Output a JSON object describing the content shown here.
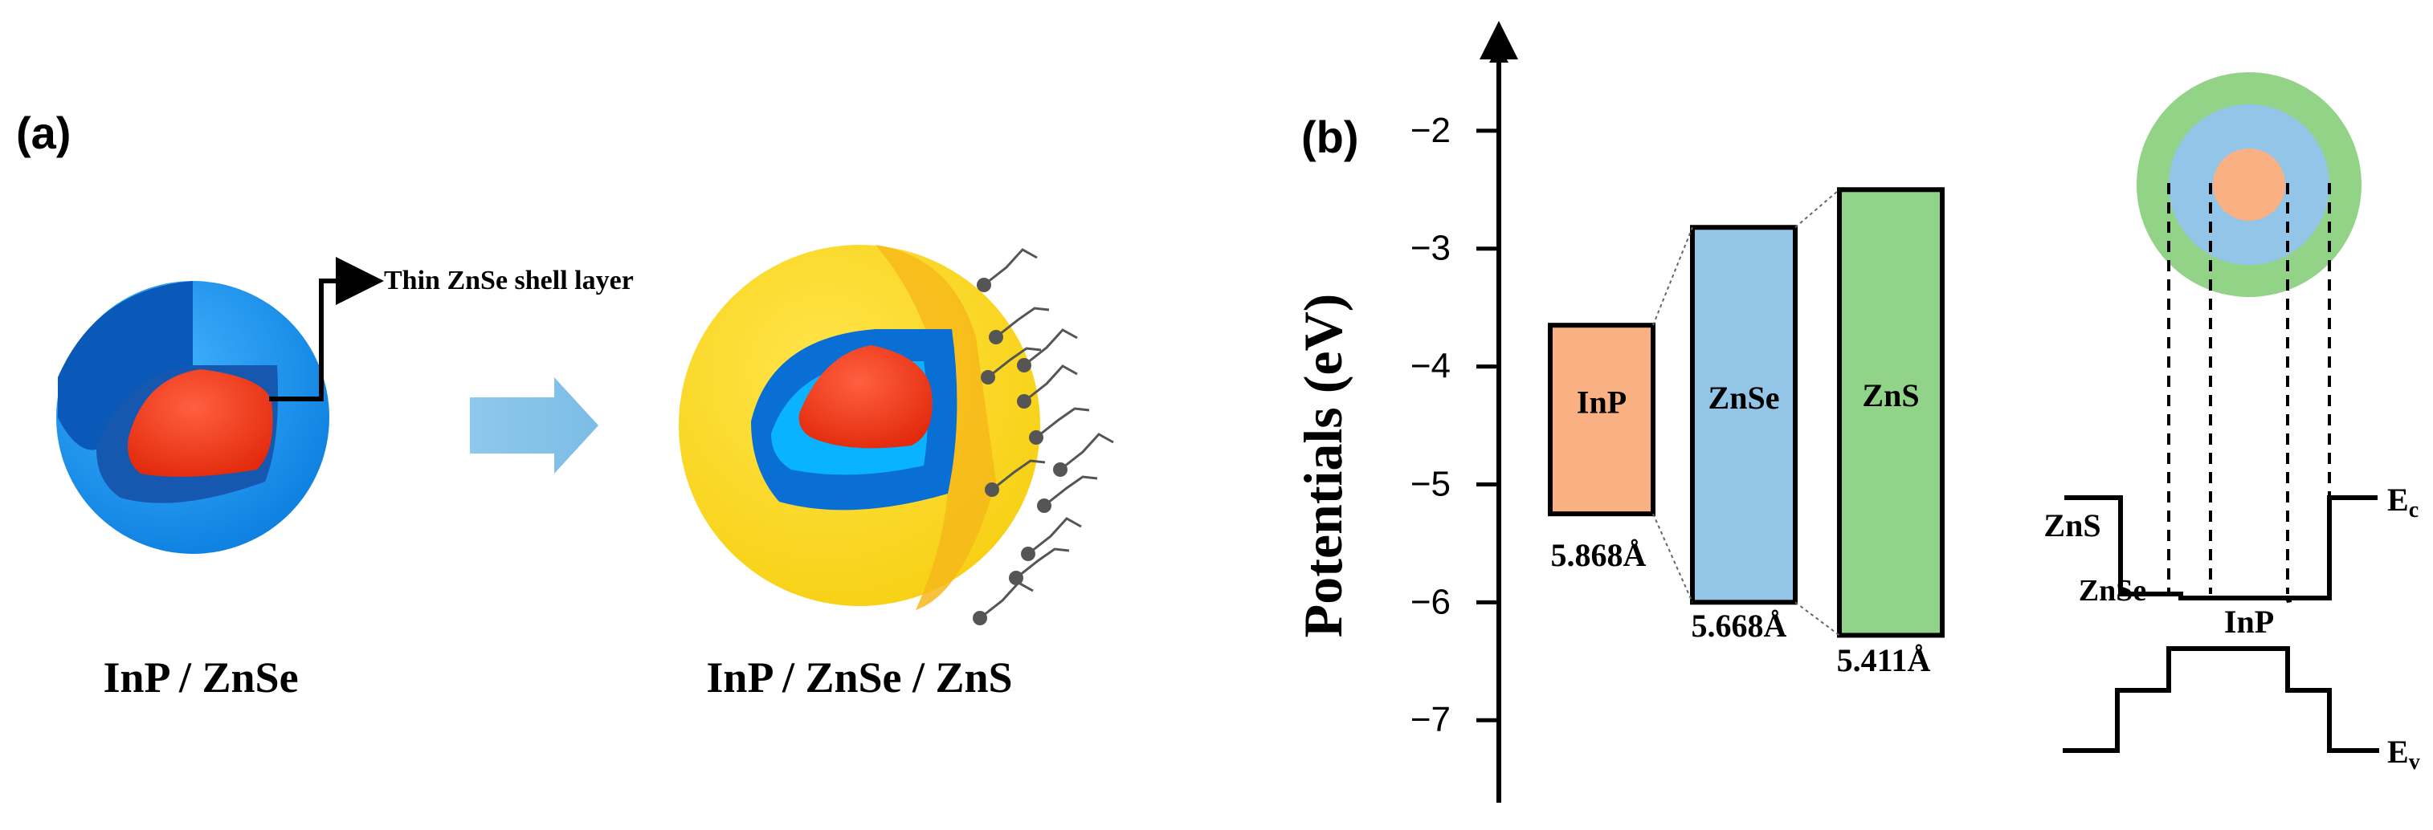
{
  "panel_a": {
    "label": "(a)",
    "callout": "Thin ZnSe shell layer",
    "caption_left": "InP / ZnSe",
    "caption_right": "InP / ZnSe / ZnS"
  },
  "panel_b": {
    "label": "(b)",
    "chart_data": {
      "type": "bar",
      "ylabel": "Potentials (eV)",
      "ylim": [
        -7.7,
        -1.3
      ],
      "yticks": [
        -2,
        -3,
        -4,
        -5,
        -6,
        -7
      ],
      "bars": [
        {
          "name": "InP",
          "top": -3.65,
          "bottom": -5.25,
          "lattice": "5.868Å",
          "color": "#f9b183"
        },
        {
          "name": "ZnSe",
          "top": -2.82,
          "bottom": -6.0,
          "lattice": "5.668Å",
          "color": "#93c5e7"
        },
        {
          "name": "ZnS",
          "top": -2.5,
          "bottom": -6.28,
          "lattice": "5.411Å",
          "color": "#92d38a"
        }
      ]
    },
    "band_diagram": {
      "labels": {
        "zns": "ZnS",
        "znse": "ZnSe",
        "inp": "InP",
        "ec_main": "E",
        "ec_sub": "c",
        "ev_main": "E",
        "ev_sub": "v"
      },
      "colors": {
        "outer": "#93d387",
        "middle": "#93c5e9",
        "core": "#f9b183"
      }
    }
  }
}
